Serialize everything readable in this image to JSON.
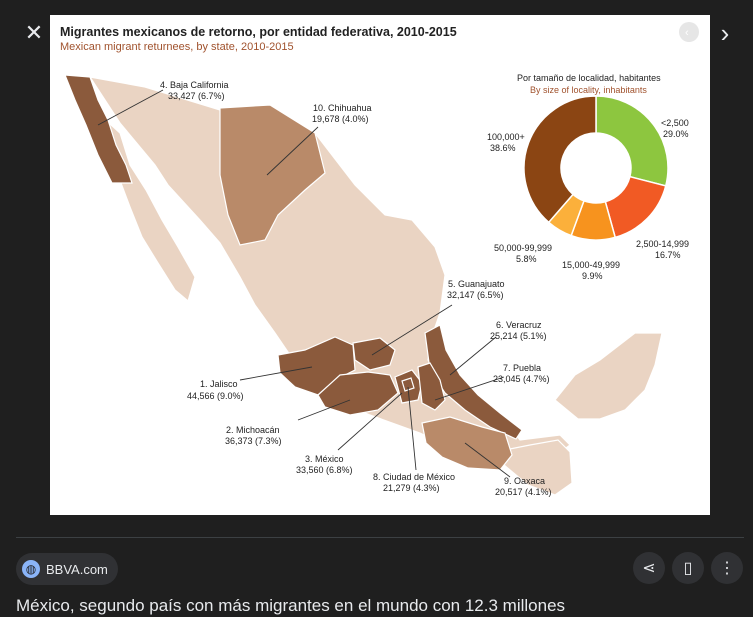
{
  "viewer": {
    "close_icon": "close-icon",
    "next_icon": "chevron-right-icon",
    "source": "BBVA.com",
    "caption": "México, segundo país con más migrantes en el mundo con 12.3 millones"
  },
  "figure": {
    "title": "Migrantes mexicanos de retorno, por entidad federativa, 2010-2015",
    "subtitle": "Mexican migrant returnees, by state, 2010-2015",
    "colors": {
      "light": "#ead4c3",
      "medium": "#b98a69",
      "dark": "#8b5a3c"
    },
    "labels": {
      "baja": {
        "name": "4. Baja California",
        "value": "33,427 (6.7%)"
      },
      "chihuahua": {
        "name": "10. Chihuahua",
        "value": "19,678 (4.0%)"
      },
      "guanajuato": {
        "name": "5. Guanajuato",
        "value": "32,147 (6.5%)"
      },
      "veracruz": {
        "name": "6. Veracruz",
        "value": "25,214 (5.1%)"
      },
      "puebla": {
        "name": "7. Puebla",
        "value": "23,045 (4.7%)"
      },
      "jalisco": {
        "name": "1. Jalisco",
        "value": "44,566 (9.0%)"
      },
      "michoacan": {
        "name": "2. Michoacán",
        "value": "36,373 (7.3%)"
      },
      "mexico": {
        "name": "3. México",
        "value": "33,560 (6.8%)"
      },
      "cdmx": {
        "name": "8. Ciudad de México",
        "value": "21,279 (4.3%)"
      },
      "oaxaca": {
        "name": "9. Oaxaca",
        "value": "20,517 (4.1%)"
      }
    },
    "pie": {
      "heading": "Por tamaño de localidad, habitantes",
      "heading_en": "By size of locality, inhabitants",
      "slices": [
        {
          "key": "lt2500",
          "label": "<2,500",
          "pct": "29.0%",
          "value": 29.0,
          "color": "#8dc63f"
        },
        {
          "key": "s2500",
          "label": "2,500-14,999",
          "pct": "16.7%",
          "value": 16.7,
          "color": "#f15a24"
        },
        {
          "key": "s15000",
          "label": "15,000-49,999",
          "pct": "9.9%",
          "value": 9.9,
          "color": "#f7931e"
        },
        {
          "key": "s50000",
          "label": "50,000-99,999",
          "pct": "5.8%",
          "value": 5.8,
          "color": "#fbb03b"
        },
        {
          "key": "s100000",
          "label": "100,000+",
          "pct": "38.6%",
          "value": 38.6,
          "color": "#8b4513"
        }
      ]
    }
  }
}
